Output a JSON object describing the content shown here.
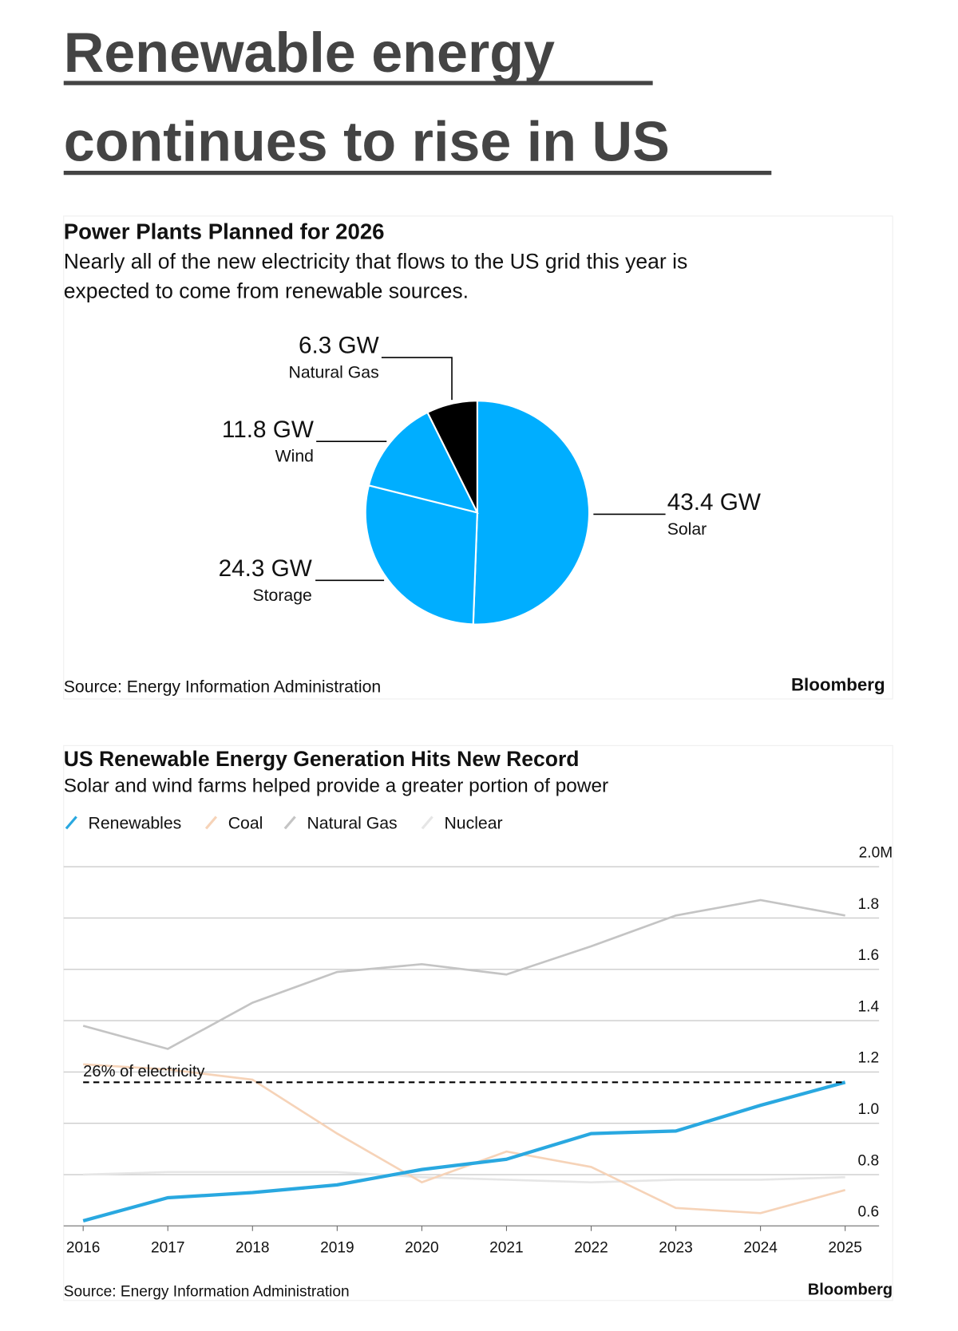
{
  "headline": [
    "Renewable energy",
    "continues to rise in US"
  ],
  "chart_data": [
    {
      "type": "pie",
      "title": "Power Plants Planned for 2026",
      "subtitle": [
        "Nearly all of the new electricity that flows to the US grid this year is",
        "expected to come from renewable sources."
      ],
      "categories": [
        "Solar",
        "Storage",
        "Wind",
        "Natural Gas"
      ],
      "values": [
        43.4,
        24.3,
        11.8,
        6.3
      ],
      "value_labels": [
        "43.4 GW",
        "24.3 GW",
        "11.8 GW",
        "6.3 GW"
      ],
      "colors": [
        "#00aeff",
        "#00aeff",
        "#00aeff",
        "#000000"
      ],
      "source": "Source: Energy Information Administration",
      "credit": "Bloomberg"
    },
    {
      "type": "line",
      "title": "US Renewable Energy Generation Hits New Record",
      "subtitle": "Solar and wind farms helped provide a greater portion of power",
      "categories": [
        "2016",
        "2017",
        "2018",
        "2019",
        "2020",
        "2021",
        "2022",
        "2023",
        "2024",
        "2025"
      ],
      "series": [
        {
          "name": "Renewables",
          "color": "#29a8e0",
          "values": [
            0.62,
            0.71,
            0.73,
            0.76,
            0.82,
            0.86,
            0.96,
            0.97,
            1.07,
            1.16
          ]
        },
        {
          "name": "Coal",
          "color": "#f6d3b8",
          "values": [
            1.23,
            1.21,
            1.17,
            0.96,
            0.77,
            0.89,
            0.83,
            0.67,
            0.65,
            0.74
          ]
        },
        {
          "name": "Natural Gas",
          "color": "#c4c4c4",
          "values": [
            1.38,
            1.29,
            1.47,
            1.59,
            1.62,
            1.58,
            1.69,
            1.81,
            1.87,
            1.81
          ]
        },
        {
          "name": "Nuclear",
          "color": "#e6e6e6",
          "values": [
            0.8,
            0.81,
            0.81,
            0.81,
            0.79,
            0.78,
            0.77,
            0.78,
            0.78,
            0.79
          ]
        }
      ],
      "ylim": [
        0.6,
        2.0
      ],
      "yticks": [
        0.6,
        0.8,
        {
          "value": 1,
          "label": "1.0"
        },
        1.2,
        1.4,
        1.6,
        1.8,
        {
          "value": 2,
          "label": "2.0M"
        }
      ],
      "grid": true,
      "annotation": {
        "text": "26% of electricity",
        "value": 1.16
      },
      "source": "Source: Energy Information Administration",
      "credit": "Bloomberg"
    }
  ]
}
